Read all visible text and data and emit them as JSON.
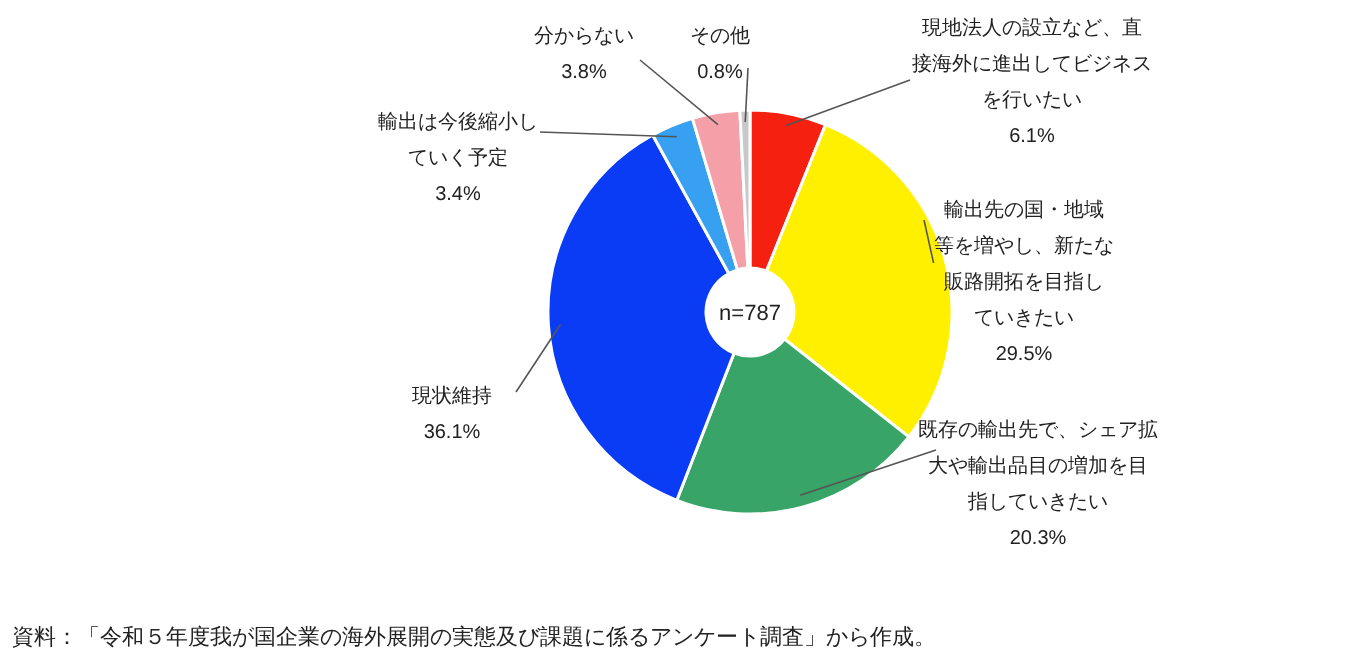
{
  "chart_data": {
    "type": "donut",
    "categories": [
      "現地法人の設立など、直接海外に進出してビジネスを行いたい",
      "輸出先の国・地域等を増やし、新たな販路開拓を目指していきたい",
      "既存の輸出先で、シェア拡大や輸出品目の増加を目指していきたい",
      "現状維持",
      "輸出は今後縮小していく予定",
      "分からない",
      "その他"
    ],
    "values": [
      6.1,
      29.5,
      20.3,
      36.1,
      3.4,
      3.8,
      0.8
    ],
    "value_labels": [
      "6.1%",
      "29.5%",
      "20.3%",
      "36.1%",
      "3.4%",
      "3.8%",
      "0.8%"
    ],
    "colors": [
      "#f5200f",
      "#fff000",
      "#38a468",
      "#0a3cf5",
      "#38a0f0",
      "#f5a0a8",
      "#c8c8c8"
    ],
    "annotations": [
      "n=787",
      "資料：「令和５年度我が国企業の海外展開の実態及び課題に係るアンケート調査」から作成。"
    ]
  }
}
